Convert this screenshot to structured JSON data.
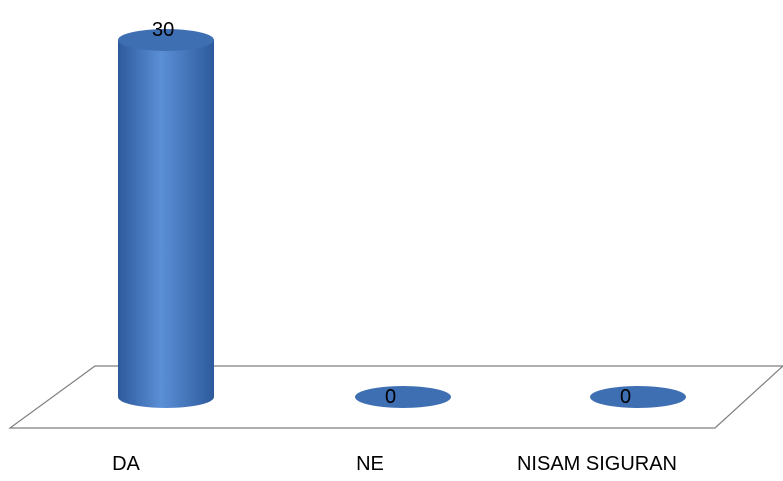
{
  "chart_data": {
    "type": "bar",
    "style": "3d-cylinder",
    "categories": [
      "DA",
      "NE",
      "NISAM SIGURAN"
    ],
    "values": [
      30,
      0,
      0
    ],
    "data_labels": [
      "30",
      "0",
      "0"
    ],
    "title": "",
    "xlabel": "",
    "ylabel": "",
    "ylim": [
      0,
      30
    ],
    "grid": false,
    "legend": "none",
    "colors": {
      "bar_light": "#5b8fd6",
      "bar_mid": "#4a7bc4",
      "bar_dark": "#2d5a9c",
      "bar_top": "#3f6fb3",
      "floor_stroke": "#7f7f7f",
      "text": "#000000"
    }
  }
}
